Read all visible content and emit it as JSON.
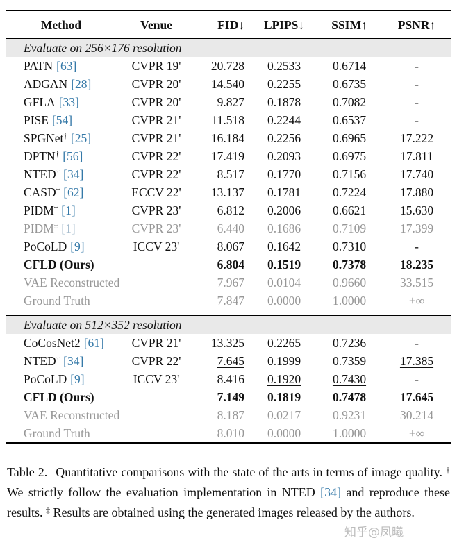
{
  "colors": {
    "citation": "#3579a8",
    "muted": "#979797",
    "section_band_bg": "#e9e9e9",
    "rule": "#000000"
  },
  "watermark": "知乎@凤曦",
  "table": {
    "columns": [
      "Method",
      "Venue",
      "FID↓",
      "LPIPS↓",
      "SSIM↑",
      "PSNR↑"
    ],
    "sections": [
      {
        "title": "Evaluate on 256×176 resolution",
        "rows": [
          {
            "method": "PATN",
            "sup": "",
            "cite": "[63]",
            "venue": "CVPR 19'",
            "fid": "20.728",
            "lpips": "0.2533",
            "ssim": "0.6714",
            "psnr": "-",
            "bold": false,
            "muted": false,
            "underline": []
          },
          {
            "method": "ADGAN",
            "sup": "",
            "cite": "[28]",
            "venue": "CVPR 20'",
            "fid": "14.540",
            "lpips": "0.2255",
            "ssim": "0.6735",
            "psnr": "-",
            "bold": false,
            "muted": false,
            "underline": []
          },
          {
            "method": "GFLA",
            "sup": "",
            "cite": "[33]",
            "venue": "CVPR 20'",
            "fid": "9.827",
            "lpips": "0.1878",
            "ssim": "0.7082",
            "psnr": "-",
            "bold": false,
            "muted": false,
            "underline": []
          },
          {
            "method": "PISE",
            "sup": "",
            "cite": "[54]",
            "venue": "CVPR 21'",
            "fid": "11.518",
            "lpips": "0.2244",
            "ssim": "0.6537",
            "psnr": "-",
            "bold": false,
            "muted": false,
            "underline": []
          },
          {
            "method": "SPGNet",
            "sup": "†",
            "cite": "[25]",
            "venue": "CVPR 21'",
            "fid": "16.184",
            "lpips": "0.2256",
            "ssim": "0.6965",
            "psnr": "17.222",
            "bold": false,
            "muted": false,
            "underline": []
          },
          {
            "method": "DPTN",
            "sup": "†",
            "cite": "[56]",
            "venue": "CVPR 22'",
            "fid": "17.419",
            "lpips": "0.2093",
            "ssim": "0.6975",
            "psnr": "17.811",
            "bold": false,
            "muted": false,
            "underline": []
          },
          {
            "method": "NTED",
            "sup": "†",
            "cite": "[34]",
            "venue": "CVPR 22'",
            "fid": "8.517",
            "lpips": "0.1770",
            "ssim": "0.7156",
            "psnr": "17.740",
            "bold": false,
            "muted": false,
            "underline": []
          },
          {
            "method": "CASD",
            "sup": "†",
            "cite": "[62]",
            "venue": "ECCV 22'",
            "fid": "13.137",
            "lpips": "0.1781",
            "ssim": "0.7224",
            "psnr": "17.880",
            "bold": false,
            "muted": false,
            "underline": [
              "psnr"
            ]
          },
          {
            "method": "PIDM",
            "sup": "†",
            "cite": "[1]",
            "venue": "CVPR 23'",
            "fid": "6.812",
            "lpips": "0.2006",
            "ssim": "0.6621",
            "psnr": "15.630",
            "bold": false,
            "muted": false,
            "underline": [
              "fid"
            ]
          },
          {
            "method": "PIDM",
            "sup": "‡",
            "cite": "[1]",
            "venue": "CVPR 23'",
            "fid": "6.440",
            "lpips": "0.1686",
            "ssim": "0.7109",
            "psnr": "17.399",
            "bold": false,
            "muted": true,
            "underline": []
          },
          {
            "method": "PoCoLD",
            "sup": "",
            "cite": "[9]",
            "venue": "ICCV 23'",
            "fid": "8.067",
            "lpips": "0.1642",
            "ssim": "0.7310",
            "psnr": "-",
            "bold": false,
            "muted": false,
            "underline": [
              "lpips",
              "ssim"
            ]
          },
          {
            "method": "CFLD (Ours)",
            "sup": "",
            "cite": "",
            "venue": "",
            "fid": "6.804",
            "lpips": "0.1519",
            "ssim": "0.7378",
            "psnr": "18.235",
            "bold": true,
            "muted": false,
            "underline": []
          },
          {
            "method": "VAE Reconstructed",
            "sup": "",
            "cite": "",
            "venue": "",
            "fid": "7.967",
            "lpips": "0.0104",
            "ssim": "0.9660",
            "psnr": "33.515",
            "bold": false,
            "muted": true,
            "underline": []
          },
          {
            "method": "Ground Truth",
            "sup": "",
            "cite": "",
            "venue": "",
            "fid": "7.847",
            "lpips": "0.0000",
            "ssim": "1.0000",
            "psnr": "+∞",
            "bold": false,
            "muted": true,
            "underline": []
          }
        ]
      },
      {
        "title": "Evaluate on 512×352 resolution",
        "rows": [
          {
            "method": "CoCosNet2",
            "sup": "",
            "cite": "[61]",
            "venue": "CVPR 21'",
            "fid": "13.325",
            "lpips": "0.2265",
            "ssim": "0.7236",
            "psnr": "-",
            "bold": false,
            "muted": false,
            "underline": []
          },
          {
            "method": "NTED",
            "sup": "†",
            "cite": "[34]",
            "venue": "CVPR 22'",
            "fid": "7.645",
            "lpips": "0.1999",
            "ssim": "0.7359",
            "psnr": "17.385",
            "bold": false,
            "muted": false,
            "underline": [
              "fid",
              "psnr"
            ]
          },
          {
            "method": "PoCoLD",
            "sup": "",
            "cite": "[9]",
            "venue": "ICCV 23'",
            "fid": "8.416",
            "lpips": "0.1920",
            "ssim": "0.7430",
            "psnr": "-",
            "bold": false,
            "muted": false,
            "underline": [
              "lpips",
              "ssim"
            ]
          },
          {
            "method": "CFLD (Ours)",
            "sup": "",
            "cite": "",
            "venue": "",
            "fid": "7.149",
            "lpips": "0.1819",
            "ssim": "0.7478",
            "psnr": "17.645",
            "bold": true,
            "muted": false,
            "underline": []
          },
          {
            "method": "VAE Reconstructed",
            "sup": "",
            "cite": "",
            "venue": "",
            "fid": "8.187",
            "lpips": "0.0217",
            "ssim": "0.9231",
            "psnr": "30.214",
            "bold": false,
            "muted": true,
            "underline": []
          },
          {
            "method": "Ground Truth",
            "sup": "",
            "cite": "",
            "venue": "",
            "fid": "8.010",
            "lpips": "0.0000",
            "ssim": "1.0000",
            "psnr": "+∞",
            "bold": false,
            "muted": true,
            "underline": []
          }
        ]
      }
    ]
  },
  "caption": {
    "label": "Table 2.",
    "part1": " Quantitative comparisons with the state of the arts in terms of image quality. ",
    "dagger": "†",
    "part2": " We strictly follow the evaluation implementation in NTED ",
    "cite": "[34]",
    "part3": " and reproduce these results. ",
    "ddagger": "‡",
    "part4": " Results are obtained using the generated images released by the authors."
  }
}
